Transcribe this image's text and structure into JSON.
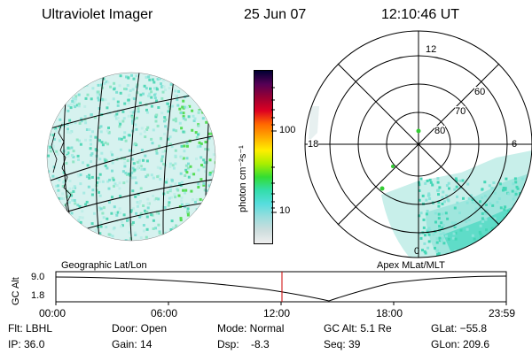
{
  "header": {
    "instrument": "Ultraviolet Imager",
    "date": "25 Jun 07",
    "time": "12:10:46 UT"
  },
  "colorbar": {
    "unit_label": "photon cm⁻²s⁻¹",
    "ticks": [
      "100",
      "10"
    ],
    "stops": [
      "#000033",
      "#550055",
      "#990033",
      "#dd0022",
      "#ff6600",
      "#ffaa00",
      "#ffee00",
      "#aaee00",
      "#33dd33",
      "#33ddaa",
      "#55dddd",
      "#99dddd",
      "#ccdddd",
      "#eeeeee"
    ]
  },
  "left_panel": {
    "caption": "Geographic Lat/Lon"
  },
  "right_panel": {
    "caption": "Apex MLat/MLT",
    "mlt_labels": {
      "top": "12",
      "left": "18",
      "right": "6",
      "bottom": "0"
    },
    "lat_labels": [
      "60",
      "70",
      "80"
    ]
  },
  "altitude_plot": {
    "axis_label": "GC Alt",
    "y_ticks": [
      "9.0",
      "1.8"
    ],
    "x_ticks": [
      "00:00",
      "06:00",
      "12:00",
      "18:00",
      "23:59"
    ],
    "marker_color": "#cc0000"
  },
  "info": {
    "flt": "Flt: LBHL",
    "ip": "IP: 36.0",
    "door": "Door: Open",
    "gain": "Gain: 14",
    "mode": "Mode: Normal",
    "dsp": "Dsp:    -8.3",
    "gc_alt": "GC Alt: 5.1 Re",
    "seq": "Seq: 39",
    "glat": "GLat: −55.8",
    "glon": "GLon: 209.6"
  }
}
